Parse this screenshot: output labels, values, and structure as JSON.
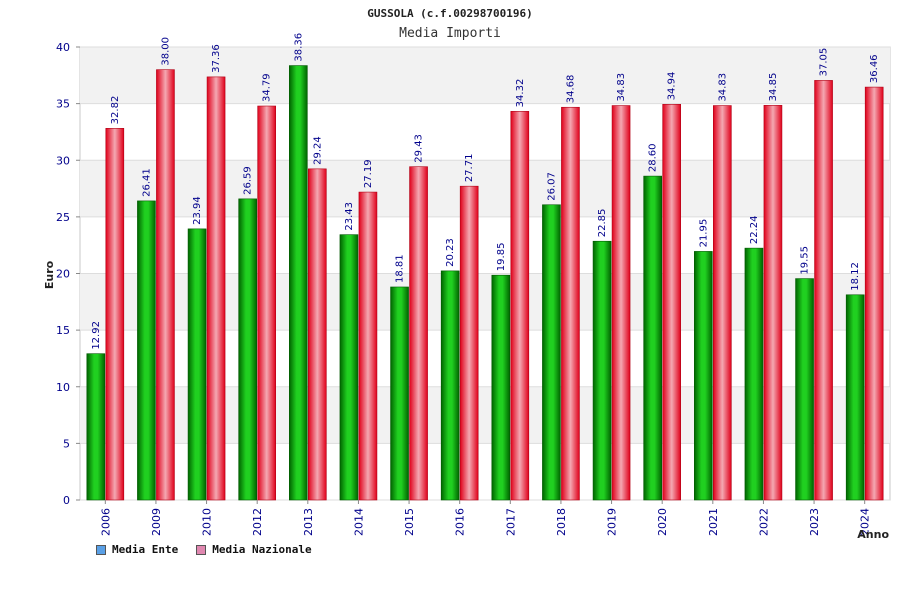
{
  "chart_data": {
    "type": "bar",
    "title": "GUSSOLA (c.f.00298700196)",
    "subtitle": "Media Importi",
    "xlabel": "Anno",
    "ylabel": "Euro",
    "ylim": [
      0,
      40
    ],
    "yticks": [
      0,
      5,
      10,
      15,
      20,
      25,
      30,
      35,
      40
    ],
    "categories": [
      "2006",
      "2009",
      "2010",
      "2012",
      "2013",
      "2014",
      "2015",
      "2016",
      "2017",
      "2018",
      "2019",
      "2020",
      "2021",
      "2022",
      "2023",
      "2024"
    ],
    "series": [
      {
        "name": "Media Ente",
        "color": "#00b000",
        "values": [
          12.92,
          26.41,
          23.94,
          26.59,
          38.36,
          23.43,
          18.81,
          20.23,
          19.85,
          26.07,
          22.85,
          28.6,
          21.95,
          22.24,
          19.55,
          18.12
        ]
      },
      {
        "name": "Media Nazionale",
        "color": "#e8101e",
        "values": [
          32.82,
          38.0,
          37.36,
          34.79,
          29.24,
          27.19,
          29.43,
          27.71,
          34.32,
          34.68,
          34.83,
          34.94,
          34.83,
          34.85,
          37.05,
          36.46
        ]
      }
    ],
    "data_labels": [
      [
        "12.92",
        "26.41",
        "23.94",
        "26.59",
        "38.36",
        "23.43",
        "18.81",
        "20.23",
        "19.85",
        "26.07",
        "22.85",
        "28.60",
        "21.95",
        "22.24",
        "19.55",
        "18.12"
      ],
      [
        "32.82",
        "38.00",
        "37.36",
        "34.79",
        "29.24",
        "27.19",
        "29.43",
        "27.71",
        "34.32",
        "34.68",
        "34.83",
        "34.94",
        "34.83",
        "34.85",
        "37.05",
        "36.46"
      ]
    ],
    "grid": true,
    "legend_position": "bottom-left"
  },
  "legend": {
    "items": [
      {
        "label": "Media Ente",
        "color": "#5aa0e6"
      },
      {
        "label": "Media Nazionale",
        "color": "#e088b0"
      }
    ]
  }
}
